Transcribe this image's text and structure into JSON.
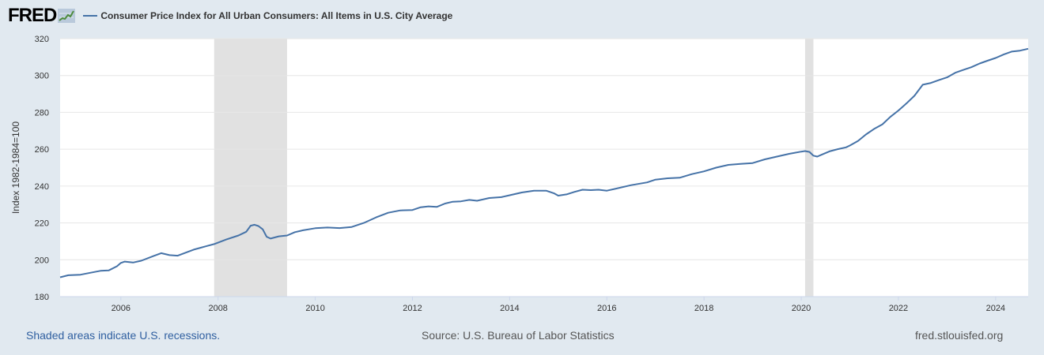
{
  "header": {
    "logo_text": "FRED",
    "legend_label": "Consumer Price Index for All Urban Consumers: All Items in U.S. City Average"
  },
  "footer": {
    "recession_note": "Shaded areas indicate U.S. recessions.",
    "source": "Source: U.S. Bureau of Labor Statistics",
    "site": "fred.stlouisfed.org"
  },
  "colors": {
    "line": "#4572a7",
    "recession_shade": "#e1e1e1",
    "background": "#e1e9f0",
    "plot": "#ffffff",
    "gridline": "#e6e6e6",
    "footer_link": "#2f5fa0"
  },
  "chart_data": {
    "type": "line",
    "title": "",
    "ylabel": "Index 1982-1984=100",
    "xlabel": "",
    "ylim": [
      180,
      320
    ],
    "xlim": [
      2004.75,
      2024.67
    ],
    "y_ticks": [
      180,
      200,
      220,
      240,
      260,
      280,
      300,
      320
    ],
    "x_ticks": [
      2006,
      2008,
      2010,
      2012,
      2014,
      2016,
      2018,
      2020,
      2022,
      2024
    ],
    "grid": "horizontal",
    "recessions": [
      [
        2007.92,
        2009.42
      ],
      [
        2020.08,
        2020.25
      ]
    ],
    "series": [
      {
        "name": "Consumer Price Index for All Urban Consumers: All Items in U.S. City Average",
        "points": [
          [
            2004.75,
            190.5
          ],
          [
            2004.92,
            191.6
          ],
          [
            2005.17,
            191.9
          ],
          [
            2005.42,
            193.2
          ],
          [
            2005.58,
            194.0
          ],
          [
            2005.75,
            194.2
          ],
          [
            2005.92,
            196.5
          ],
          [
            2006.0,
            198.3
          ],
          [
            2006.08,
            199.0
          ],
          [
            2006.25,
            198.5
          ],
          [
            2006.42,
            199.5
          ],
          [
            2006.67,
            202.0
          ],
          [
            2006.83,
            203.6
          ],
          [
            2007.0,
            202.5
          ],
          [
            2007.17,
            202.2
          ],
          [
            2007.5,
            205.5
          ],
          [
            2007.75,
            207.3
          ],
          [
            2007.92,
            208.5
          ],
          [
            2008.17,
            211.0
          ],
          [
            2008.42,
            213.2
          ],
          [
            2008.58,
            215.2
          ],
          [
            2008.67,
            218.5
          ],
          [
            2008.75,
            219.0
          ],
          [
            2008.83,
            218.3
          ],
          [
            2008.92,
            216.5
          ],
          [
            2009.0,
            212.5
          ],
          [
            2009.08,
            211.5
          ],
          [
            2009.25,
            212.7
          ],
          [
            2009.42,
            213.2
          ],
          [
            2009.58,
            215.0
          ],
          [
            2009.75,
            216.0
          ],
          [
            2010.0,
            217.1
          ],
          [
            2010.25,
            217.5
          ],
          [
            2010.5,
            217.2
          ],
          [
            2010.75,
            217.8
          ],
          [
            2011.0,
            220.0
          ],
          [
            2011.25,
            223.0
          ],
          [
            2011.5,
            225.5
          ],
          [
            2011.75,
            226.8
          ],
          [
            2012.0,
            227.0
          ],
          [
            2012.17,
            228.5
          ],
          [
            2012.33,
            229.0
          ],
          [
            2012.5,
            228.7
          ],
          [
            2012.67,
            230.5
          ],
          [
            2012.83,
            231.5
          ],
          [
            2013.0,
            231.7
          ],
          [
            2013.17,
            232.5
          ],
          [
            2013.33,
            232.0
          ],
          [
            2013.58,
            233.5
          ],
          [
            2013.83,
            234.0
          ],
          [
            2014.0,
            235.0
          ],
          [
            2014.25,
            236.5
          ],
          [
            2014.5,
            237.5
          ],
          [
            2014.75,
            237.5
          ],
          [
            2014.92,
            236.0
          ],
          [
            2015.0,
            234.8
          ],
          [
            2015.17,
            235.5
          ],
          [
            2015.33,
            236.8
          ],
          [
            2015.5,
            238.0
          ],
          [
            2015.67,
            237.8
          ],
          [
            2015.83,
            238.0
          ],
          [
            2016.0,
            237.5
          ],
          [
            2016.17,
            238.5
          ],
          [
            2016.5,
            240.5
          ],
          [
            2016.83,
            242.0
          ],
          [
            2017.0,
            243.5
          ],
          [
            2017.25,
            244.2
          ],
          [
            2017.5,
            244.5
          ],
          [
            2017.75,
            246.5
          ],
          [
            2018.0,
            248.0
          ],
          [
            2018.25,
            250.0
          ],
          [
            2018.5,
            251.5
          ],
          [
            2018.75,
            252.0
          ],
          [
            2019.0,
            252.5
          ],
          [
            2019.25,
            254.5
          ],
          [
            2019.5,
            256.0
          ],
          [
            2019.75,
            257.5
          ],
          [
            2020.0,
            258.7
          ],
          [
            2020.08,
            259.0
          ],
          [
            2020.17,
            258.5
          ],
          [
            2020.25,
            256.5
          ],
          [
            2020.33,
            256.0
          ],
          [
            2020.42,
            257.0
          ],
          [
            2020.58,
            258.8
          ],
          [
            2020.75,
            260.0
          ],
          [
            2020.92,
            261.0
          ],
          [
            2021.0,
            262.0
          ],
          [
            2021.17,
            264.5
          ],
          [
            2021.33,
            268.0
          ],
          [
            2021.5,
            271.0
          ],
          [
            2021.67,
            273.5
          ],
          [
            2021.83,
            277.5
          ],
          [
            2022.0,
            281.0
          ],
          [
            2022.17,
            285.0
          ],
          [
            2022.33,
            289.0
          ],
          [
            2022.5,
            295.0
          ],
          [
            2022.67,
            296.0
          ],
          [
            2022.83,
            297.5
          ],
          [
            2023.0,
            299.0
          ],
          [
            2023.17,
            301.5
          ],
          [
            2023.33,
            303.0
          ],
          [
            2023.5,
            304.5
          ],
          [
            2023.67,
            306.5
          ],
          [
            2023.83,
            308.0
          ],
          [
            2024.0,
            309.5
          ],
          [
            2024.17,
            311.5
          ],
          [
            2024.33,
            313.0
          ],
          [
            2024.5,
            313.5
          ],
          [
            2024.67,
            314.5
          ]
        ]
      }
    ]
  }
}
